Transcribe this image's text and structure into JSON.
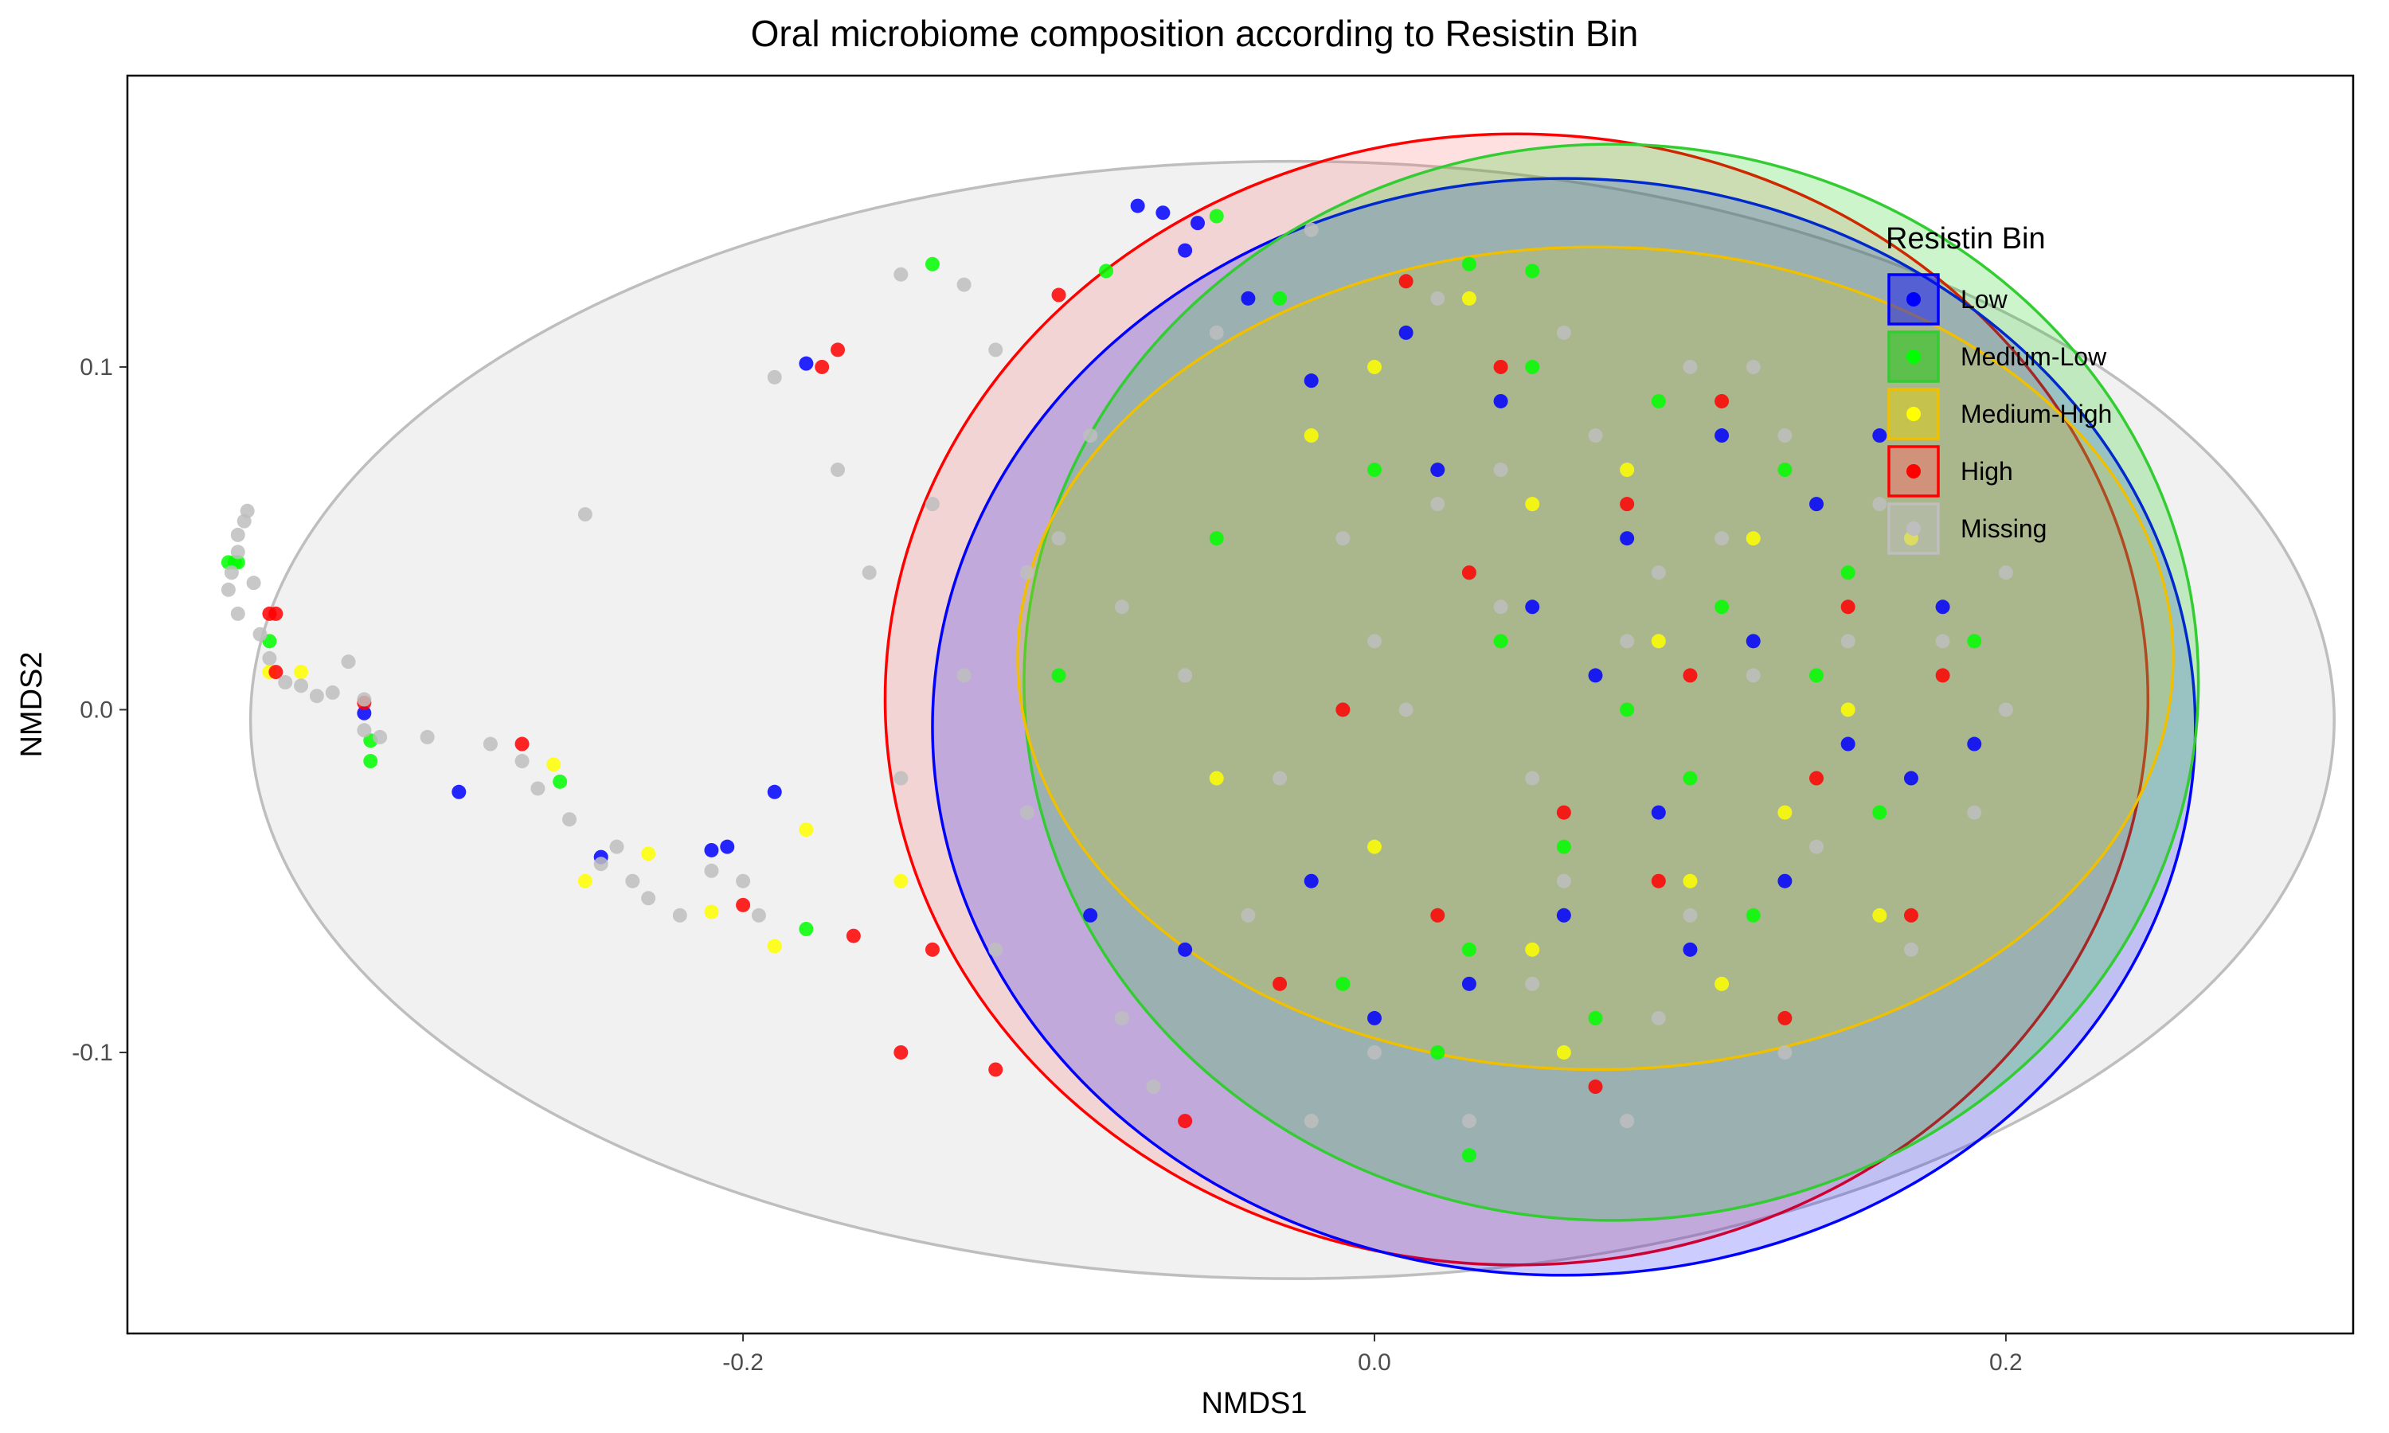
{
  "chart_data": {
    "type": "scatter",
    "title": "Oral microbiome composition according to Resistin Bin",
    "xlabel": "NMDS1",
    "ylabel": "NMDS2",
    "xlim": [
      -0.395,
      0.31
    ],
    "ylim": [
      -0.182,
      0.185
    ],
    "x_ticks": [
      -0.2,
      0.0,
      0.2
    ],
    "x_tick_labels": [
      "-0.2",
      "0.0",
      "0.2"
    ],
    "y_ticks": [
      -0.1,
      0.0,
      0.1
    ],
    "y_tick_labels": [
      "-0.1",
      "0.0",
      "0.1"
    ],
    "grid": false,
    "legend": {
      "title": "Resistin Bin",
      "placement": "top-right"
    },
    "series": [
      {
        "name": "Low",
        "color": "#0000ff",
        "fill": "#0000ff",
        "stroke": "#0000ff",
        "ellipse": {
          "cx": 0.06,
          "cy": -0.005,
          "rx": 0.2,
          "ry": 0.16
        },
        "points": [
          [
            -0.075,
            0.147
          ],
          [
            -0.067,
            0.145
          ],
          [
            -0.056,
            0.142
          ],
          [
            -0.06,
            0.134
          ],
          [
            -0.18,
            0.101
          ],
          [
            -0.32,
            -0.001
          ],
          [
            -0.29,
            -0.024
          ],
          [
            -0.245,
            -0.043
          ],
          [
            -0.21,
            -0.041
          ],
          [
            -0.205,
            -0.04
          ],
          [
            -0.19,
            -0.024
          ],
          [
            -0.02,
            0.096
          ],
          [
            0.02,
            0.07
          ],
          [
            0.05,
            0.03
          ],
          [
            0.08,
            0.05
          ],
          [
            0.11,
            0.08
          ],
          [
            0.14,
            0.06
          ],
          [
            0.12,
            0.02
          ],
          [
            0.15,
            -0.01
          ],
          [
            0.09,
            -0.03
          ],
          [
            0.06,
            -0.06
          ],
          [
            0.03,
            -0.08
          ],
          [
            -0.02,
            -0.05
          ],
          [
            -0.06,
            -0.07
          ],
          [
            -0.09,
            -0.06
          ],
          [
            0.0,
            -0.09
          ],
          [
            0.1,
            -0.07
          ],
          [
            0.13,
            -0.05
          ],
          [
            0.17,
            -0.02
          ],
          [
            0.18,
            0.03
          ],
          [
            0.07,
            0.01
          ],
          [
            0.04,
            0.09
          ],
          [
            0.01,
            0.11
          ],
          [
            -0.04,
            0.12
          ],
          [
            0.16,
            0.08
          ],
          [
            0.19,
            -0.01
          ]
        ]
      },
      {
        "name": "Medium-Low",
        "color": "#00ff00",
        "fill": "#00cc00",
        "stroke": "#33cc33",
        "ellipse": {
          "cx": 0.075,
          "cy": 0.008,
          "rx": 0.186,
          "ry": 0.157
        },
        "points": [
          [
            -0.363,
            0.043
          ],
          [
            -0.361,
            0.043
          ],
          [
            -0.36,
            0.043
          ],
          [
            -0.35,
            0.02
          ],
          [
            -0.318,
            -0.009
          ],
          [
            -0.318,
            -0.015
          ],
          [
            -0.258,
            -0.021
          ],
          [
            -0.18,
            -0.064
          ],
          [
            -0.14,
            0.13
          ],
          [
            -0.085,
            0.128
          ],
          [
            -0.05,
            0.144
          ],
          [
            -0.03,
            0.12
          ],
          [
            0.03,
            0.13
          ],
          [
            0.05,
            0.128
          ],
          [
            0.0,
            0.07
          ],
          [
            0.04,
            0.02
          ],
          [
            0.08,
            0.0
          ],
          [
            0.11,
            0.03
          ],
          [
            0.13,
            0.07
          ],
          [
            0.15,
            0.04
          ],
          [
            0.1,
            -0.02
          ],
          [
            0.06,
            -0.04
          ],
          [
            0.03,
            -0.07
          ],
          [
            -0.01,
            -0.08
          ],
          [
            0.02,
            -0.1
          ],
          [
            0.07,
            -0.09
          ],
          [
            0.12,
            -0.06
          ],
          [
            0.16,
            -0.03
          ],
          [
            0.14,
            0.01
          ],
          [
            0.05,
            0.1
          ],
          [
            -0.05,
            0.05
          ],
          [
            0.03,
            -0.13
          ],
          [
            -0.1,
            0.01
          ],
          [
            0.19,
            0.02
          ],
          [
            0.09,
            0.09
          ]
        ]
      },
      {
        "name": "Medium-High",
        "color": "#ffff00",
        "fill": "#e6d000",
        "stroke": "#f0c000",
        "ellipse": {
          "cx": 0.07,
          "cy": 0.015,
          "rx": 0.183,
          "ry": 0.12
        },
        "points": [
          [
            -0.34,
            0.011
          ],
          [
            -0.35,
            0.011
          ],
          [
            -0.26,
            -0.016
          ],
          [
            -0.25,
            -0.05
          ],
          [
            -0.23,
            -0.042
          ],
          [
            -0.21,
            -0.059
          ],
          [
            -0.19,
            -0.069
          ],
          [
            -0.18,
            -0.035
          ],
          [
            -0.15,
            -0.05
          ],
          [
            0.0,
            0.1
          ],
          [
            0.05,
            0.06
          ],
          [
            0.09,
            0.02
          ],
          [
            0.12,
            0.05
          ],
          [
            0.15,
            0.0
          ],
          [
            0.1,
            -0.05
          ],
          [
            0.05,
            -0.07
          ],
          [
            0.0,
            -0.04
          ],
          [
            -0.05,
            -0.02
          ],
          [
            0.08,
            0.07
          ],
          [
            0.13,
            -0.03
          ],
          [
            0.17,
            0.05
          ],
          [
            0.03,
            0.12
          ],
          [
            -0.02,
            0.08
          ],
          [
            0.06,
            -0.1
          ],
          [
            0.11,
            -0.08
          ],
          [
            0.16,
            -0.06
          ]
        ]
      },
      {
        "name": "High",
        "color": "#ff0000",
        "fill": "#ff6666",
        "stroke": "#ff0000",
        "ellipse": {
          "cx": 0.045,
          "cy": 0.003,
          "rx": 0.2,
          "ry": 0.165
        },
        "points": [
          [
            -0.35,
            0.028
          ],
          [
            -0.348,
            0.028
          ],
          [
            -0.348,
            0.011
          ],
          [
            -0.32,
            0.002
          ],
          [
            -0.27,
            -0.01
          ],
          [
            -0.17,
            0.105
          ],
          [
            -0.175,
            0.1
          ],
          [
            -0.2,
            -0.057
          ],
          [
            -0.165,
            -0.066
          ],
          [
            -0.14,
            -0.07
          ],
          [
            -0.15,
            -0.1
          ],
          [
            -0.12,
            -0.105
          ],
          [
            -0.1,
            0.121
          ],
          [
            0.01,
            0.125
          ],
          [
            0.04,
            0.1
          ],
          [
            0.08,
            0.06
          ],
          [
            0.1,
            0.01
          ],
          [
            0.06,
            -0.03
          ],
          [
            0.02,
            -0.06
          ],
          [
            -0.03,
            -0.08
          ],
          [
            0.09,
            -0.05
          ],
          [
            0.13,
            -0.09
          ],
          [
            0.15,
            0.03
          ],
          [
            0.11,
            0.09
          ],
          [
            0.14,
            -0.02
          ],
          [
            -0.01,
            0.0
          ],
          [
            0.03,
            0.04
          ],
          [
            0.17,
            -0.06
          ],
          [
            0.07,
            -0.11
          ],
          [
            -0.06,
            -0.12
          ],
          [
            0.18,
            0.01
          ]
        ]
      },
      {
        "name": "Missing",
        "color": "#bebebe",
        "fill": "#bebebe",
        "stroke": "#bebebe",
        "ellipse": {
          "cx": -0.026,
          "cy": -0.003,
          "rx": 0.33,
          "ry": 0.163
        },
        "points": [
          [
            -0.357,
            0.058
          ],
          [
            -0.358,
            0.055
          ],
          [
            -0.36,
            0.051
          ],
          [
            -0.36,
            0.046
          ],
          [
            -0.362,
            0.04
          ],
          [
            -0.363,
            0.035
          ],
          [
            -0.36,
            0.028
          ],
          [
            -0.355,
            0.037
          ],
          [
            -0.353,
            0.022
          ],
          [
            -0.35,
            0.015
          ],
          [
            -0.345,
            0.008
          ],
          [
            -0.34,
            0.007
          ],
          [
            -0.335,
            0.004
          ],
          [
            -0.33,
            0.005
          ],
          [
            -0.325,
            0.014
          ],
          [
            -0.32,
            0.003
          ],
          [
            -0.315,
            -0.008
          ],
          [
            -0.32,
            -0.006
          ],
          [
            -0.3,
            -0.008
          ],
          [
            -0.28,
            -0.01
          ],
          [
            -0.27,
            -0.015
          ],
          [
            -0.265,
            -0.023
          ],
          [
            -0.255,
            -0.032
          ],
          [
            -0.245,
            -0.045
          ],
          [
            -0.24,
            -0.04
          ],
          [
            -0.235,
            -0.05
          ],
          [
            -0.23,
            -0.055
          ],
          [
            -0.22,
            -0.06
          ],
          [
            -0.21,
            -0.047
          ],
          [
            -0.2,
            -0.05
          ],
          [
            -0.195,
            -0.06
          ],
          [
            -0.25,
            0.057
          ],
          [
            -0.19,
            0.097
          ],
          [
            -0.15,
            0.127
          ],
          [
            -0.13,
            0.124
          ],
          [
            -0.12,
            0.105
          ],
          [
            -0.17,
            0.07
          ],
          [
            -0.14,
            0.06
          ],
          [
            -0.1,
            0.05
          ],
          [
            -0.08,
            0.03
          ],
          [
            -0.06,
            0.01
          ],
          [
            -0.03,
            -0.02
          ],
          [
            0.0,
            0.02
          ],
          [
            0.02,
            0.06
          ],
          [
            0.04,
            0.03
          ],
          [
            0.07,
            0.08
          ],
          [
            0.09,
            0.04
          ],
          [
            0.12,
            0.01
          ],
          [
            0.14,
            -0.04
          ],
          [
            0.1,
            -0.06
          ],
          [
            0.05,
            -0.08
          ],
          [
            0.0,
            -0.1
          ],
          [
            -0.04,
            -0.06
          ],
          [
            -0.08,
            -0.09
          ],
          [
            -0.11,
            -0.03
          ],
          [
            -0.09,
            0.08
          ],
          [
            -0.05,
            0.11
          ],
          [
            -0.02,
            0.14
          ],
          [
            0.02,
            0.12
          ],
          [
            0.06,
            0.11
          ],
          [
            0.1,
            0.1
          ],
          [
            0.13,
            0.08
          ],
          [
            0.16,
            0.06
          ],
          [
            0.18,
            0.02
          ],
          [
            0.19,
            -0.03
          ],
          [
            0.17,
            -0.07
          ],
          [
            0.13,
            -0.1
          ],
          [
            0.08,
            -0.12
          ],
          [
            0.03,
            -0.12
          ],
          [
            -0.02,
            -0.12
          ],
          [
            -0.07,
            -0.11
          ],
          [
            -0.12,
            -0.07
          ],
          [
            -0.13,
            0.01
          ],
          [
            -0.11,
            0.04
          ],
          [
            0.01,
            0.0
          ],
          [
            0.05,
            -0.02
          ],
          [
            0.08,
            0.02
          ],
          [
            0.11,
            0.05
          ],
          [
            0.15,
            0.02
          ],
          [
            0.2,
            0.0
          ],
          [
            0.04,
            0.07
          ],
          [
            -0.01,
            0.05
          ],
          [
            0.06,
            -0.05
          ],
          [
            0.09,
            -0.09
          ],
          [
            0.12,
            0.1
          ],
          [
            0.2,
            0.04
          ],
          [
            -0.15,
            -0.02
          ],
          [
            -0.16,
            0.04
          ]
        ]
      }
    ]
  }
}
